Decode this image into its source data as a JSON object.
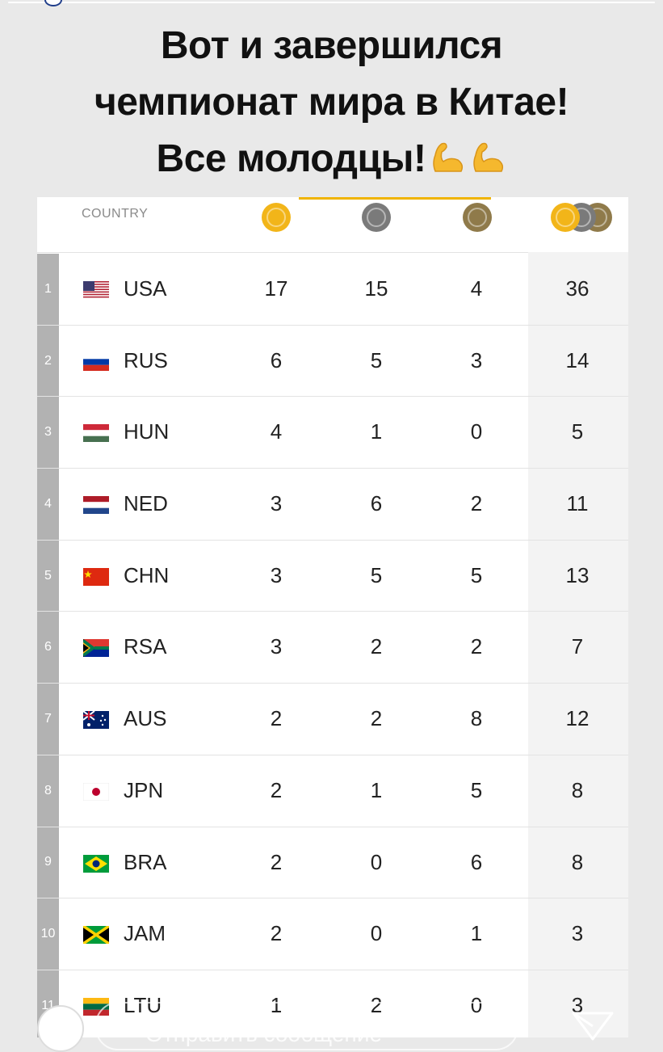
{
  "headline": {
    "line1": "Вот и завершился",
    "line2": "чемпионат мира в Китае!",
    "line3": "Все молодцы!",
    "emoji_icon": "flexed-biceps-icon"
  },
  "table": {
    "country_header": "COUNTRY",
    "medal_icons": [
      "gold-medal-icon",
      "silver-medal-icon",
      "bronze-medal-icon",
      "total-medals-icon"
    ],
    "colors": {
      "gold": "#f2b519",
      "silver": "#7a7a7a",
      "bronze": "#8f7a4a",
      "accent": "#f0b400"
    },
    "rows": [
      {
        "rank": "1",
        "country": "USA",
        "gold": "17",
        "silver": "15",
        "bronze": "4",
        "total": "36",
        "flag": "us-flag-icon"
      },
      {
        "rank": "2",
        "country": "RUS",
        "gold": "6",
        "silver": "5",
        "bronze": "3",
        "total": "14",
        "flag": "ru-flag-icon"
      },
      {
        "rank": "3",
        "country": "HUN",
        "gold": "4",
        "silver": "1",
        "bronze": "0",
        "total": "5",
        "flag": "hu-flag-icon"
      },
      {
        "rank": "4",
        "country": "NED",
        "gold": "3",
        "silver": "6",
        "bronze": "2",
        "total": "11",
        "flag": "nl-flag-icon"
      },
      {
        "rank": "5",
        "country": "CHN",
        "gold": "3",
        "silver": "5",
        "bronze": "5",
        "total": "13",
        "flag": "cn-flag-icon"
      },
      {
        "rank": "6",
        "country": "RSA",
        "gold": "3",
        "silver": "2",
        "bronze": "2",
        "total": "7",
        "flag": "za-flag-icon"
      },
      {
        "rank": "7",
        "country": "AUS",
        "gold": "2",
        "silver": "2",
        "bronze": "8",
        "total": "12",
        "flag": "au-flag-icon"
      },
      {
        "rank": "8",
        "country": "JPN",
        "gold": "2",
        "silver": "1",
        "bronze": "5",
        "total": "8",
        "flag": "jp-flag-icon"
      },
      {
        "rank": "9",
        "country": "BRA",
        "gold": "2",
        "silver": "0",
        "bronze": "6",
        "total": "8",
        "flag": "br-flag-icon"
      },
      {
        "rank": "10",
        "country": "JAM",
        "gold": "2",
        "silver": "0",
        "bronze": "1",
        "total": "3",
        "flag": "jm-flag-icon"
      },
      {
        "rank": "11",
        "country": "LTU",
        "gold": "1",
        "silver": "2",
        "bronze": "0",
        "total": "3",
        "flag": "lt-flag-icon"
      }
    ]
  },
  "bottom": {
    "message_placeholder": "Отправить сообщение",
    "camera_icon": "camera-icon",
    "more_icon": "more-dots-icon",
    "send_icon": "send-icon"
  }
}
